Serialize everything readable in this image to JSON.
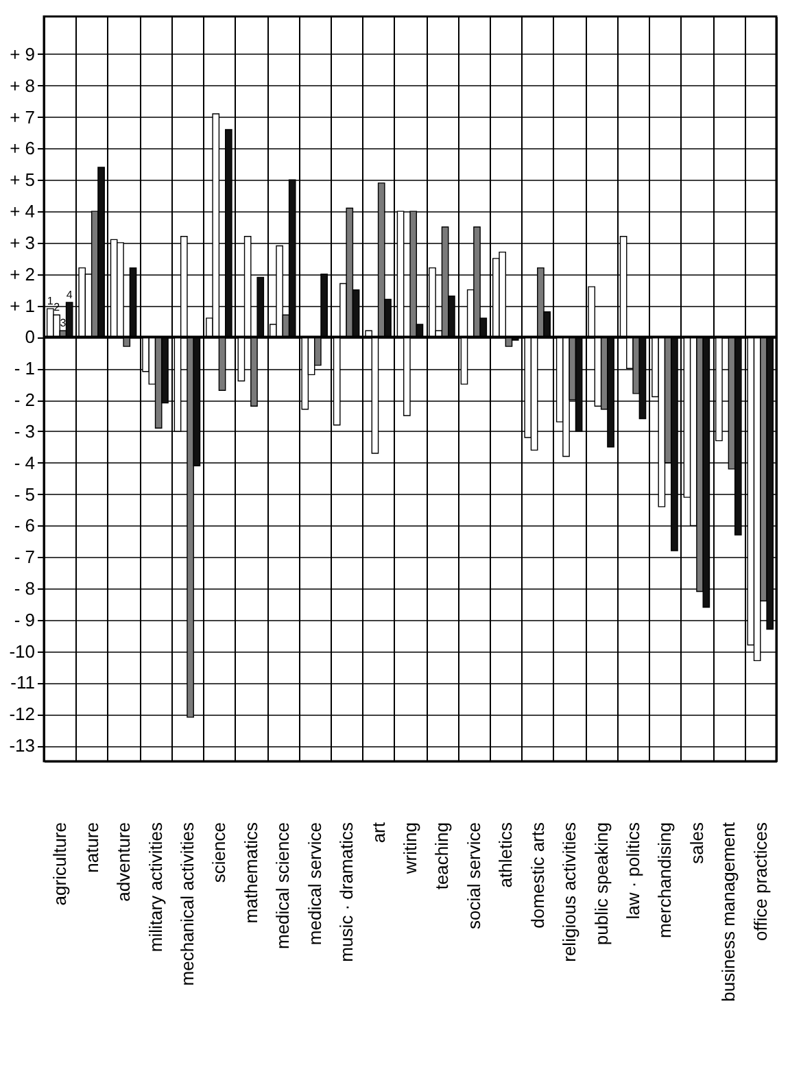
{
  "chart_data": {
    "type": "bar",
    "categories": [
      "agriculture",
      "nature",
      "adventure",
      "military activities",
      "mechanical activities",
      "science",
      "mathematics",
      "medical science",
      "medical service",
      "music · dramatics",
      "art",
      "writing",
      "teaching",
      "social service",
      "athletics",
      "domestic arts",
      "religious activities",
      "public speaking",
      "law · politics",
      "merchandising",
      "sales",
      "business management",
      "office practices"
    ],
    "series": [
      {
        "name": "1",
        "color": "#ffffff",
        "values": [
          0.9,
          2.2,
          3.1,
          -1.1,
          -3.0,
          0.6,
          -1.4,
          0.4,
          -2.3,
          -2.8,
          0.2,
          4.0,
          2.2,
          -1.5,
          2.5,
          -3.2,
          -2.7,
          1.6,
          3.2,
          -1.9,
          -5.1,
          -3.3,
          -9.8
        ]
      },
      {
        "name": "2",
        "color": "#ffffff",
        "values": [
          0.7,
          2.0,
          3.0,
          -1.5,
          3.2,
          7.1,
          3.2,
          2.9,
          -1.2,
          1.7,
          -3.7,
          -2.5,
          0.2,
          1.5,
          2.7,
          -3.6,
          -3.8,
          -2.2,
          -1.0,
          -5.4,
          -6.0,
          null,
          -10.3
        ]
      },
      {
        "name": "3",
        "color": "#7a7a7a",
        "values": [
          0.2,
          4.0,
          -0.3,
          -2.9,
          -12.1,
          -1.7,
          -2.2,
          0.7,
          -0.9,
          4.1,
          4.9,
          4.0,
          3.5,
          3.5,
          -0.3,
          2.2,
          -2.0,
          -2.3,
          -1.8,
          -4.0,
          -8.1,
          -4.2,
          -8.4
        ]
      },
      {
        "name": "4",
        "color": "#111111",
        "values": [
          1.1,
          5.4,
          2.2,
          -2.1,
          -4.1,
          6.6,
          1.9,
          5.0,
          2.0,
          1.5,
          1.2,
          0.4,
          1.3,
          0.6,
          -0.1,
          0.8,
          -3.0,
          -3.5,
          -2.6,
          -6.8,
          -8.6,
          -6.3,
          -9.3
        ]
      }
    ],
    "ylim": [
      -13.5,
      10.2
    ],
    "yticks": [
      {
        "value": 9,
        "label": "+ 9"
      },
      {
        "value": 8,
        "label": "+ 8"
      },
      {
        "value": 7,
        "label": "+ 7"
      },
      {
        "value": 6,
        "label": "+ 6"
      },
      {
        "value": 5,
        "label": "+ 5"
      },
      {
        "value": 4,
        "label": "+ 4"
      },
      {
        "value": 3,
        "label": "+ 3"
      },
      {
        "value": 2,
        "label": "+ 2"
      },
      {
        "value": 1,
        "label": "+ 1"
      },
      0,
      {
        "value": -1,
        "label": "- 1"
      },
      {
        "value": -2,
        "label": "- 2"
      },
      {
        "value": -3,
        "label": "- 3"
      },
      {
        "value": -4,
        "label": "- 4"
      },
      {
        "value": -5,
        "label": "- 5"
      },
      {
        "value": -6,
        "label": "- 6"
      },
      {
        "value": -7,
        "label": "- 7"
      },
      {
        "value": -8,
        "label": "- 8"
      },
      {
        "value": -9,
        "label": "- 9"
      },
      {
        "value": -10,
        "label": "-10"
      },
      {
        "value": -11,
        "label": "-11"
      },
      {
        "value": -12,
        "label": "-12"
      },
      {
        "value": -13,
        "label": "-13"
      }
    ],
    "grid": true,
    "legend": false
  }
}
